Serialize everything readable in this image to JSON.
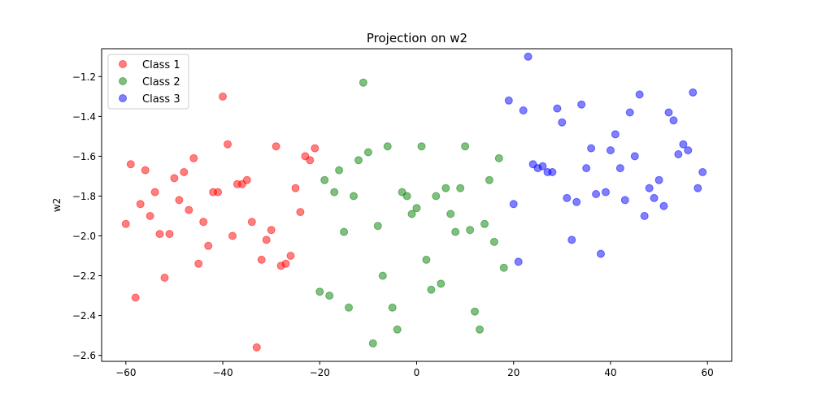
{
  "chart_data": {
    "type": "scatter",
    "title": "Projection on w2",
    "xlabel": "",
    "ylabel": "w2",
    "xlim": [
      -65,
      65
    ],
    "ylim": [
      -2.63,
      -1.06
    ],
    "xticks": [
      -60,
      -40,
      -20,
      0,
      20,
      40,
      60
    ],
    "yticks": [
      -2.6,
      -2.4,
      -2.2,
      -2.0,
      -1.8,
      -1.6,
      -1.4,
      -1.2
    ],
    "grid": false,
    "legend_position": "top-left",
    "series": [
      {
        "name": "Class 1",
        "color": "#ff0000",
        "points": [
          [
            -60,
            -1.94
          ],
          [
            -59,
            -1.64
          ],
          [
            -58,
            -2.31
          ],
          [
            -57,
            -1.84
          ],
          [
            -56,
            -1.67
          ],
          [
            -55,
            -1.9
          ],
          [
            -54,
            -1.78
          ],
          [
            -53,
            -1.99
          ],
          [
            -52,
            -2.21
          ],
          [
            -51,
            -1.99
          ],
          [
            -50,
            -1.71
          ],
          [
            -49,
            -1.82
          ],
          [
            -48,
            -1.68
          ],
          [
            -47,
            -1.87
          ],
          [
            -46,
            -1.61
          ],
          [
            -45,
            -2.14
          ],
          [
            -44,
            -1.93
          ],
          [
            -43,
            -2.05
          ],
          [
            -42,
            -1.78
          ],
          [
            -41,
            -1.78
          ],
          [
            -40,
            -1.3
          ],
          [
            -39,
            -1.54
          ],
          [
            -38,
            -2.0
          ],
          [
            -37,
            -1.74
          ],
          [
            -36,
            -1.74
          ],
          [
            -35,
            -1.72
          ],
          [
            -34,
            -1.93
          ],
          [
            -33,
            -2.56
          ],
          [
            -32,
            -2.12
          ],
          [
            -31,
            -2.02
          ],
          [
            -30,
            -1.97
          ],
          [
            -29,
            -1.55
          ],
          [
            -28,
            -2.15
          ],
          [
            -27,
            -2.14
          ],
          [
            -26,
            -2.1
          ],
          [
            -25,
            -1.76
          ],
          [
            -24,
            -1.88
          ],
          [
            -23,
            -1.6
          ],
          [
            -22,
            -1.62
          ],
          [
            -21,
            -1.56
          ]
        ]
      },
      {
        "name": "Class 2",
        "color": "#008000",
        "points": [
          [
            -20,
            -2.28
          ],
          [
            -19,
            -1.72
          ],
          [
            -18,
            -2.3
          ],
          [
            -17,
            -1.78
          ],
          [
            -16,
            -1.67
          ],
          [
            -15,
            -1.98
          ],
          [
            -14,
            -2.36
          ],
          [
            -13,
            -1.8
          ],
          [
            -12,
            -1.62
          ],
          [
            -11,
            -1.23
          ],
          [
            -10,
            -1.58
          ],
          [
            -9,
            -2.54
          ],
          [
            -8,
            -1.95
          ],
          [
            -7,
            -2.2
          ],
          [
            -6,
            -1.55
          ],
          [
            -5,
            -2.36
          ],
          [
            -4,
            -2.47
          ],
          [
            -3,
            -1.78
          ],
          [
            -2,
            -1.8
          ],
          [
            -1,
            -1.89
          ],
          [
            0,
            -1.86
          ],
          [
            1,
            -1.55
          ],
          [
            2,
            -2.12
          ],
          [
            3,
            -2.27
          ],
          [
            4,
            -1.8
          ],
          [
            5,
            -2.24
          ],
          [
            6,
            -1.76
          ],
          [
            7,
            -1.89
          ],
          [
            8,
            -1.98
          ],
          [
            9,
            -1.76
          ],
          [
            10,
            -1.55
          ],
          [
            11,
            -1.97
          ],
          [
            12,
            -2.38
          ],
          [
            13,
            -2.47
          ],
          [
            14,
            -1.94
          ],
          [
            15,
            -1.72
          ],
          [
            16,
            -2.03
          ],
          [
            17,
            -1.61
          ],
          [
            18,
            -2.16
          ]
        ]
      },
      {
        "name": "Class 3",
        "color": "#0000ff",
        "points": [
          [
            19,
            -1.32
          ],
          [
            20,
            -1.84
          ],
          [
            21,
            -2.13
          ],
          [
            22,
            -1.37
          ],
          [
            23,
            -1.1
          ],
          [
            24,
            -1.64
          ],
          [
            25,
            -1.66
          ],
          [
            26,
            -1.65
          ],
          [
            27,
            -1.68
          ],
          [
            28,
            -1.68
          ],
          [
            29,
            -1.36
          ],
          [
            30,
            -1.43
          ],
          [
            31,
            -1.81
          ],
          [
            32,
            -2.02
          ],
          [
            33,
            -1.83
          ],
          [
            34,
            -1.34
          ],
          [
            35,
            -1.66
          ],
          [
            36,
            -1.56
          ],
          [
            37,
            -1.79
          ],
          [
            38,
            -2.09
          ],
          [
            39,
            -1.78
          ],
          [
            40,
            -1.57
          ],
          [
            41,
            -1.49
          ],
          [
            42,
            -1.66
          ],
          [
            43,
            -1.82
          ],
          [
            44,
            -1.38
          ],
          [
            45,
            -1.6
          ],
          [
            46,
            -1.29
          ],
          [
            47,
            -1.9
          ],
          [
            48,
            -1.76
          ],
          [
            49,
            -1.81
          ],
          [
            50,
            -1.72
          ],
          [
            51,
            -1.85
          ],
          [
            52,
            -1.38
          ],
          [
            53,
            -1.42
          ],
          [
            54,
            -1.59
          ],
          [
            55,
            -1.54
          ],
          [
            56,
            -1.57
          ],
          [
            57,
            -1.28
          ],
          [
            58,
            -1.76
          ],
          [
            59,
            -1.68
          ]
        ]
      }
    ]
  }
}
